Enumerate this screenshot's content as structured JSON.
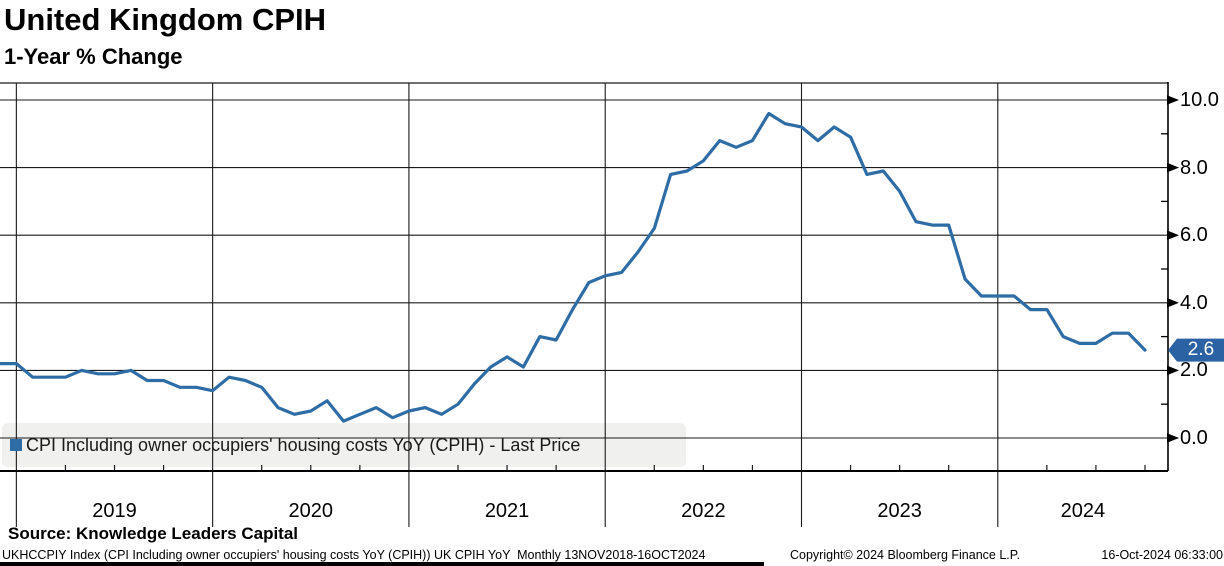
{
  "header": {
    "title": "United Kingdom CPIH",
    "subtitle": "1-Year % Change"
  },
  "chart_data": {
    "type": "line",
    "title": "United Kingdom CPIH",
    "subtitle": "1-Year % Change",
    "frequency": "monthly",
    "x_start": "2018-11",
    "x_end": "2024-09",
    "series": [
      {
        "name": "CPI Including owner occupiers' housing costs YoY (CPIH) - Last Price",
        "color": "#2e6ca5",
        "values": [
          2.2,
          2.2,
          1.8,
          1.8,
          1.8,
          2.0,
          1.9,
          1.9,
          2.0,
          1.7,
          1.7,
          1.5,
          1.5,
          1.4,
          1.8,
          1.7,
          1.5,
          0.9,
          0.7,
          0.8,
          1.1,
          0.5,
          0.7,
          0.9,
          0.6,
          0.8,
          0.9,
          0.7,
          1.0,
          1.6,
          2.1,
          2.4,
          2.1,
          3.0,
          2.9,
          3.8,
          4.6,
          4.8,
          4.9,
          5.5,
          6.2,
          7.8,
          7.9,
          8.2,
          8.8,
          8.6,
          8.8,
          9.6,
          9.3,
          9.2,
          8.8,
          9.2,
          8.9,
          7.8,
          7.9,
          7.3,
          6.4,
          6.3,
          6.3,
          4.7,
          4.2,
          4.2,
          4.2,
          3.8,
          3.8,
          3.0,
          2.8,
          2.8,
          3.1,
          3.1,
          2.6
        ]
      }
    ],
    "x_tick_labels": [
      "2019",
      "2020",
      "2021",
      "2022",
      "2023",
      "2024"
    ],
    "y_ticks": [
      0,
      2,
      4,
      6,
      8,
      10
    ],
    "y_tick_labels": [
      "0.0",
      "2.0",
      "4.0",
      "6.0",
      "8.0",
      "10.0"
    ],
    "y_minor_ticks": [
      1,
      3,
      5,
      7,
      9
    ],
    "ylim": [
      -1.0,
      10.5
    ],
    "grid": true,
    "axis_side": "right",
    "legend_position": "bottom-left",
    "last_price": {
      "label": "2.6",
      "value": 2.6,
      "color": "#2a62a3"
    }
  },
  "legend": {
    "label": "CPI Including owner occupiers' housing costs YoY (CPIH) - Last Price",
    "marker_color": "#2e6ca5"
  },
  "source": {
    "label": "Source: Knowledge Leaders Capital"
  },
  "footer": {
    "left": "UKHCCPIY Index (CPI Including owner occupiers' housing costs YoY (CPIH)) UK CPIH YoY  Monthly 13NOV2018-16OCT2024",
    "center": "Copyright© 2024 Bloomberg Finance L.P.",
    "right": "16-Oct-2024 06:33:00"
  }
}
